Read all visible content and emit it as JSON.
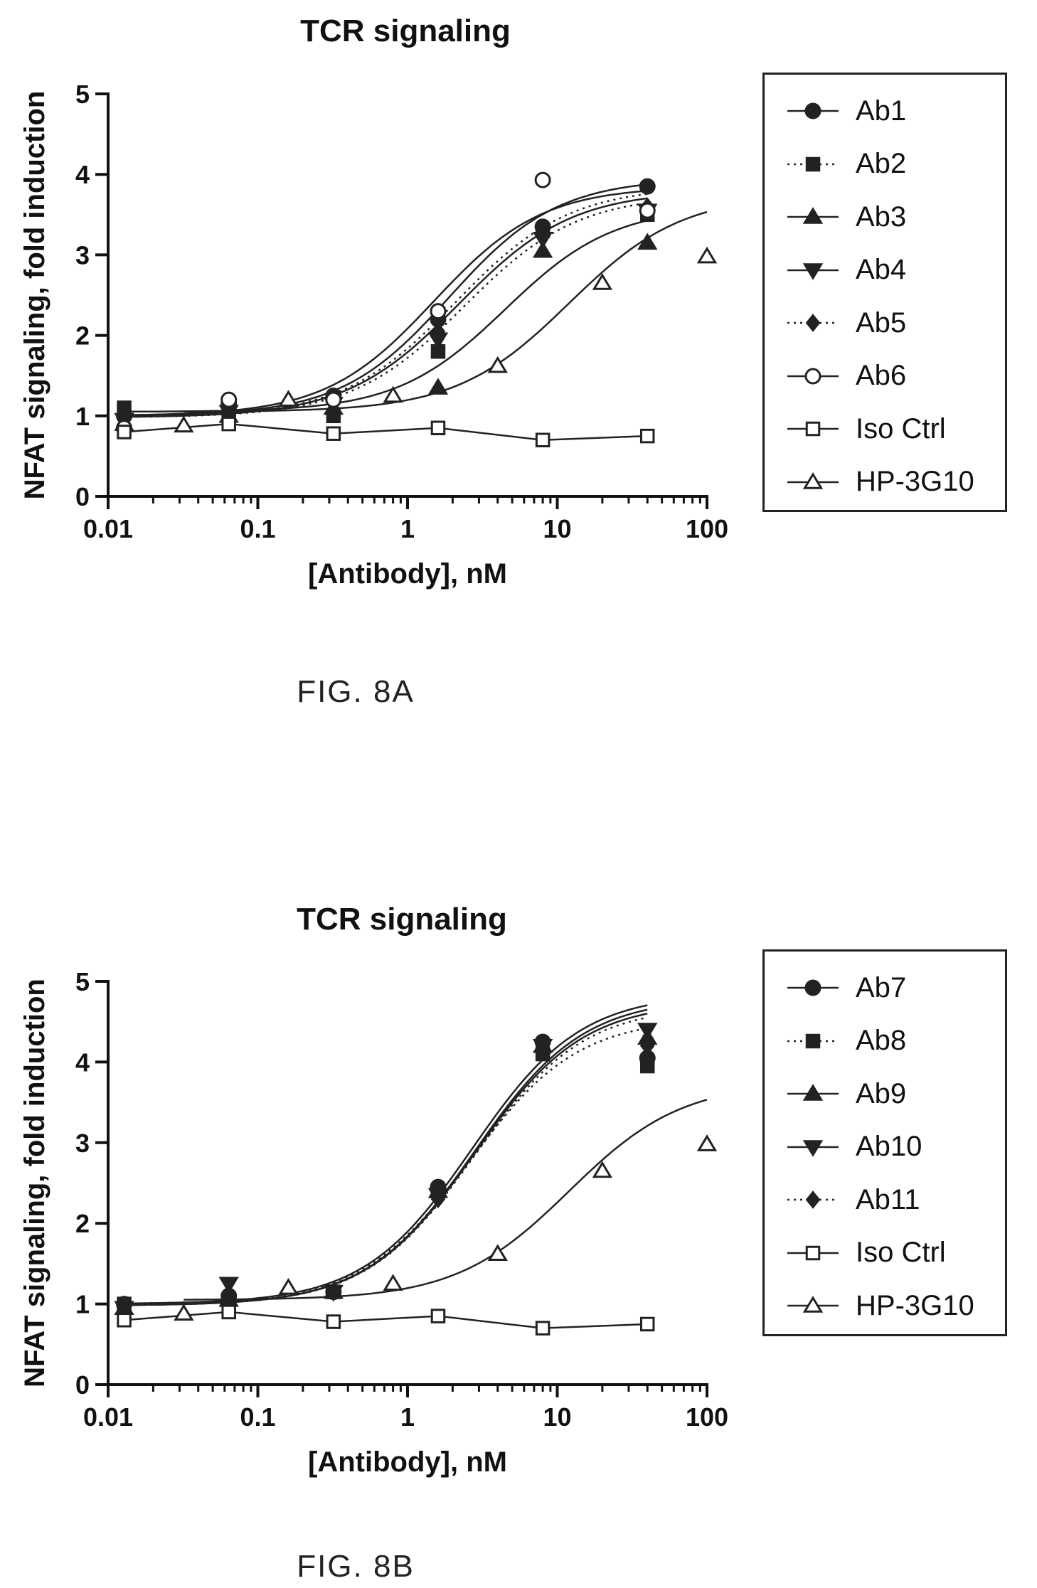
{
  "figures": [
    {
      "caption": "FIG. 8A",
      "chart_data": {
        "type": "scatter",
        "title": "TCR signaling",
        "xlabel": "[Antibody], nM",
        "ylabel": "NFAT signaling, fold induction",
        "xscale": "log",
        "xlim": [
          0.01,
          100
        ],
        "ylim": [
          0,
          5
        ],
        "xticks": [
          "0.01",
          "0.1",
          "1",
          "10",
          "100"
        ],
        "yticks": [
          "0",
          "1",
          "2",
          "3",
          "4",
          "5"
        ],
        "grid": false,
        "legend_position": "right",
        "series": [
          {
            "name": "Ab1",
            "marker": "circle",
            "filled": true,
            "line": "solid",
            "x": [
              0.0128,
              0.064,
              0.32,
              1.6,
              8,
              40
            ],
            "y": [
              1.0,
              1.15,
              1.25,
              2.2,
              3.35,
              3.85
            ],
            "fit": {
              "bottom": 1.0,
              "top": 3.95,
              "ec50": 1.9,
              "hill": 1.2
            }
          },
          {
            "name": "Ab2",
            "marker": "square",
            "filled": true,
            "line": "dotted",
            "x": [
              0.0128,
              0.064,
              0.32,
              1.6,
              8,
              40
            ],
            "y": [
              1.1,
              1.0,
              1.0,
              1.8,
              3.3,
              3.5
            ],
            "fit": {
              "bottom": 0.98,
              "top": 3.75,
              "ec50": 2.4,
              "hill": 1.15
            }
          },
          {
            "name": "Ab3",
            "marker": "triangle-up",
            "filled": true,
            "line": "solid",
            "x": [
              0.0128,
              0.064,
              0.32,
              1.6,
              8,
              40
            ],
            "y": [
              0.9,
              1.0,
              1.1,
              1.35,
              3.05,
              3.15
            ],
            "fit": {
              "bottom": 1.05,
              "top": 3.6,
              "ec50": 4.5,
              "hill": 1.2
            }
          },
          {
            "name": "Ab4",
            "marker": "triangle-down",
            "filled": true,
            "line": "solid",
            "x": [
              0.0128,
              0.064,
              0.32,
              1.6,
              8,
              40
            ],
            "y": [
              0.95,
              1.05,
              1.15,
              1.95,
              3.2,
              3.55
            ],
            "fit": {
              "bottom": 0.98,
              "top": 3.8,
              "ec50": 2.2,
              "hill": 1.15
            }
          },
          {
            "name": "Ab5",
            "marker": "diamond",
            "filled": true,
            "line": "dotted",
            "x": [
              0.0128,
              0.064,
              0.32,
              1.6,
              8,
              40
            ],
            "y": [
              0.95,
              1.05,
              1.2,
              2.05,
              3.25,
              3.6
            ],
            "fit": {
              "bottom": 0.98,
              "top": 3.85,
              "ec50": 2.1,
              "hill": 1.15
            }
          },
          {
            "name": "Ab6",
            "marker": "circle",
            "filled": false,
            "line": "solid",
            "x": [
              0.0128,
              0.064,
              0.32,
              1.6,
              8,
              40
            ],
            "y": [
              0.85,
              1.2,
              1.2,
              2.3,
              3.93,
              3.55
            ],
            "fit": {
              "bottom": 1.0,
              "top": 3.85,
              "ec50": 1.5,
              "hill": 1.2
            }
          },
          {
            "name": "Iso Ctrl",
            "marker": "square",
            "filled": false,
            "line": "solid",
            "connect": true,
            "x": [
              0.0128,
              0.064,
              0.32,
              1.6,
              8,
              40
            ],
            "y": [
              0.8,
              0.9,
              0.78,
              0.85,
              0.7,
              0.75
            ]
          },
          {
            "name": "HP-3G10",
            "marker": "triangle-up",
            "filled": false,
            "line": "solid",
            "x": [
              0.032,
              0.16,
              0.8,
              4,
              20,
              100
            ],
            "y": [
              0.88,
              1.2,
              1.25,
              1.62,
              2.65,
              2.98
            ],
            "fit": {
              "bottom": 1.05,
              "top": 3.75,
              "ec50": 12,
              "hill": 1.15
            }
          }
        ]
      }
    },
    {
      "caption": "FIG. 8B",
      "chart_data": {
        "type": "scatter",
        "title": "TCR signaling",
        "xlabel": "[Antibody], nM",
        "ylabel": "NFAT signaling, fold induction",
        "xscale": "log",
        "xlim": [
          0.01,
          100
        ],
        "ylim": [
          0,
          5
        ],
        "xticks": [
          "0.01",
          "0.1",
          "1",
          "10",
          "100"
        ],
        "yticks": [
          "0",
          "1",
          "2",
          "3",
          "4",
          "5"
        ],
        "grid": false,
        "legend_position": "right",
        "series": [
          {
            "name": "Ab7",
            "marker": "circle",
            "filled": true,
            "line": "solid",
            "x": [
              0.0128,
              0.064,
              0.32,
              1.6,
              8,
              40
            ],
            "y": [
              1.0,
              1.1,
              1.15,
              2.45,
              4.25,
              4.05
            ],
            "fit": {
              "bottom": 1.0,
              "top": 4.85,
              "ec50": 2.7,
              "hill": 1.2
            }
          },
          {
            "name": "Ab8",
            "marker": "square",
            "filled": true,
            "line": "dotted",
            "x": [
              0.0128,
              0.064,
              0.32,
              1.6,
              8,
              40
            ],
            "y": [
              1.0,
              1.05,
              1.15,
              2.4,
              4.1,
              3.95
            ],
            "fit": {
              "bottom": 1.0,
              "top": 4.55,
              "ec50": 2.6,
              "hill": 1.2
            }
          },
          {
            "name": "Ab9",
            "marker": "triangle-up",
            "filled": true,
            "line": "solid",
            "x": [
              0.0128,
              0.064,
              0.32,
              1.6,
              8,
              40
            ],
            "y": [
              0.95,
              1.05,
              1.15,
              2.4,
              4.2,
              4.3
            ],
            "fit": {
              "bottom": 0.98,
              "top": 4.8,
              "ec50": 2.8,
              "hill": 1.2
            }
          },
          {
            "name": "Ab10",
            "marker": "triangle-down",
            "filled": true,
            "line": "solid",
            "x": [
              0.0128,
              0.064,
              0.32,
              1.6,
              8,
              40
            ],
            "y": [
              0.95,
              1.25,
              1.15,
              2.35,
              4.2,
              4.4
            ],
            "fit": {
              "bottom": 0.98,
              "top": 4.75,
              "ec50": 2.8,
              "hill": 1.2
            }
          },
          {
            "name": "Ab11",
            "marker": "diamond",
            "filled": true,
            "line": "dotted",
            "x": [
              0.0128,
              0.064,
              0.32,
              1.6,
              8,
              40
            ],
            "y": [
              0.95,
              1.1,
              1.15,
              2.3,
              4.15,
              4.2
            ],
            "fit": {
              "bottom": 0.98,
              "top": 4.7,
              "ec50": 2.8,
              "hill": 1.2
            }
          },
          {
            "name": "Iso Ctrl",
            "marker": "square",
            "filled": false,
            "line": "solid",
            "connect": true,
            "x": [
              0.0128,
              0.064,
              0.32,
              1.6,
              8,
              40
            ],
            "y": [
              0.8,
              0.9,
              0.78,
              0.85,
              0.7,
              0.75
            ]
          },
          {
            "name": "HP-3G10",
            "marker": "triangle-up",
            "filled": false,
            "line": "solid",
            "x": [
              0.032,
              0.16,
              0.8,
              4,
              20,
              100
            ],
            "y": [
              0.88,
              1.2,
              1.25,
              1.62,
              2.65,
              2.98
            ],
            "fit": {
              "bottom": 1.05,
              "top": 3.75,
              "ec50": 12,
              "hill": 1.15
            }
          }
        ]
      }
    }
  ]
}
